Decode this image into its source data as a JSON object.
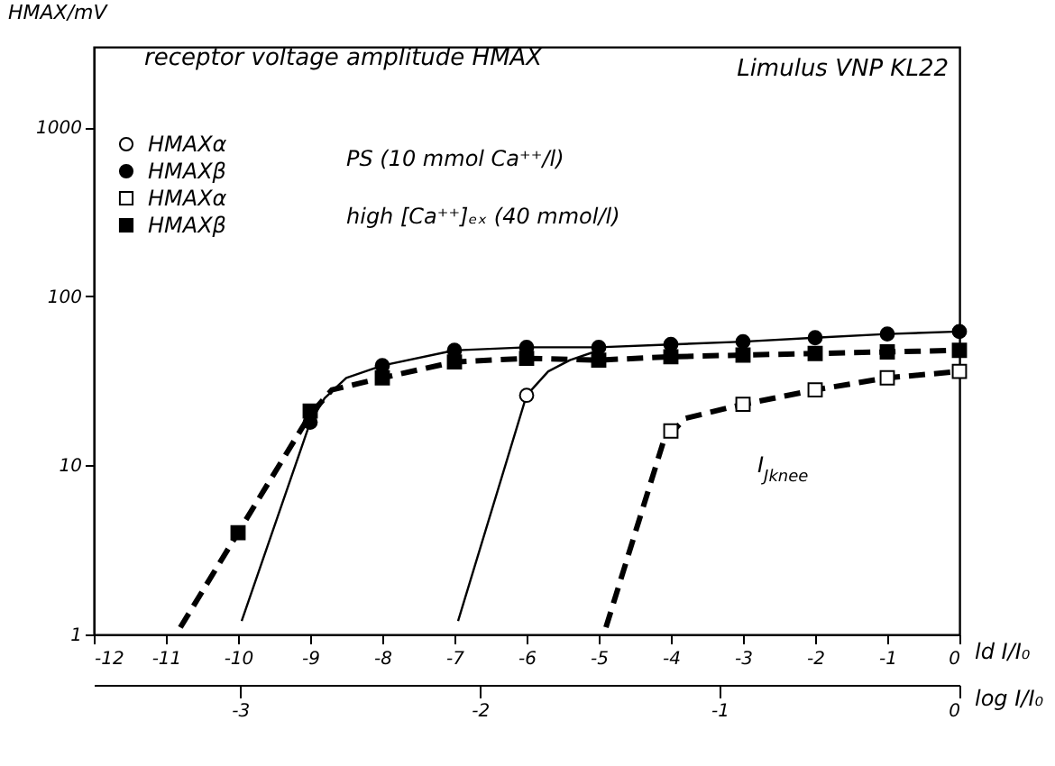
{
  "chart_data": {
    "type": "scatter",
    "title": "receptor voltage amplitude HMAX",
    "ylabel": "HMAX/mV",
    "xlabel": "ld I/I₀",
    "x2label": "log I/I₀",
    "annotations": [
      "Limulus VNP KL22",
      "PS (10 mmol Ca⁺⁺/l)",
      "high [Ca⁺⁺]ₑₓ (40 mmol/l)",
      "I$_{Jknee}$"
    ],
    "log": "y",
    "ylim": [
      1,
      3000
    ],
    "yticks": [
      1,
      10,
      100,
      1000
    ],
    "xlim": [
      -12,
      0
    ],
    "xticks": [
      -12,
      -11,
      -10,
      -9,
      -8,
      -7,
      -6,
      -5,
      -4,
      -3,
      -2,
      -1,
      0
    ],
    "x2lim": [
      -3.61,
      0
    ],
    "x2ticks": [
      -3,
      -2,
      -1,
      0
    ],
    "legend": "top left",
    "series": [
      {
        "name": "HMAXα",
        "marker": "circle",
        "color": "#ffffff",
        "x": [
          -6
        ],
        "values": [
          26
        ]
      },
      {
        "name": "HMAXβ",
        "marker": "circle",
        "color": "#000000",
        "x": [
          -9,
          -8,
          -7,
          -6,
          -5,
          -4,
          -3,
          -2,
          -1,
          0
        ],
        "values": [
          18,
          39,
          48,
          50,
          50,
          52,
          54,
          57,
          60,
          62
        ]
      },
      {
        "name": "HMAXα",
        "marker": "square",
        "color": "#ffffff",
        "x": [
          -4,
          -3,
          -2,
          -1,
          0
        ],
        "values": [
          16,
          23,
          28,
          33,
          36
        ]
      },
      {
        "name": "HMAXβ",
        "marker": "square",
        "color": "#000000",
        "x": [
          -10,
          -9,
          -8,
          -7,
          -6,
          -5,
          -4,
          -3,
          -2,
          -1,
          0
        ],
        "values": [
          4,
          21,
          33,
          41,
          43,
          42,
          44,
          45,
          46,
          47,
          48
        ]
      },
      {
        "type": "line",
        "line_style": "solid",
        "color": "#000000",
        "x": [
          -6.95,
          -6,
          -5.7,
          -5.4,
          -5
        ],
        "values": [
          1.2,
          26,
          36,
          42,
          48
        ]
      },
      {
        "type": "line",
        "line_style": "solid",
        "color": "#000000",
        "x": [
          -9.95,
          -9,
          -8.8,
          -8.5,
          -8,
          -7,
          -6,
          -5,
          -4,
          -3,
          -2,
          -1,
          0
        ],
        "values": [
          1.2,
          18,
          25,
          33,
          39,
          48,
          50,
          50,
          52,
          54,
          57,
          60,
          62
        ]
      },
      {
        "type": "line",
        "line_style": "dashed",
        "color": "#000000",
        "x": [
          -10.8,
          -10,
          -9,
          -8.7,
          -8,
          -7,
          -6,
          -5,
          -4,
          -3,
          -2,
          -1,
          0
        ],
        "values": [
          1.1,
          4,
          20,
          28,
          33,
          41,
          43,
          42,
          44,
          45,
          46,
          47,
          48
        ]
      },
      {
        "type": "line",
        "line_style": "dashed",
        "color": "#000000",
        "x": [
          -4.9,
          -4.1,
          -3.8,
          -3,
          -2,
          -1,
          0
        ],
        "values": [
          1.1,
          14,
          19,
          23,
          28,
          33,
          36
        ]
      }
    ]
  }
}
